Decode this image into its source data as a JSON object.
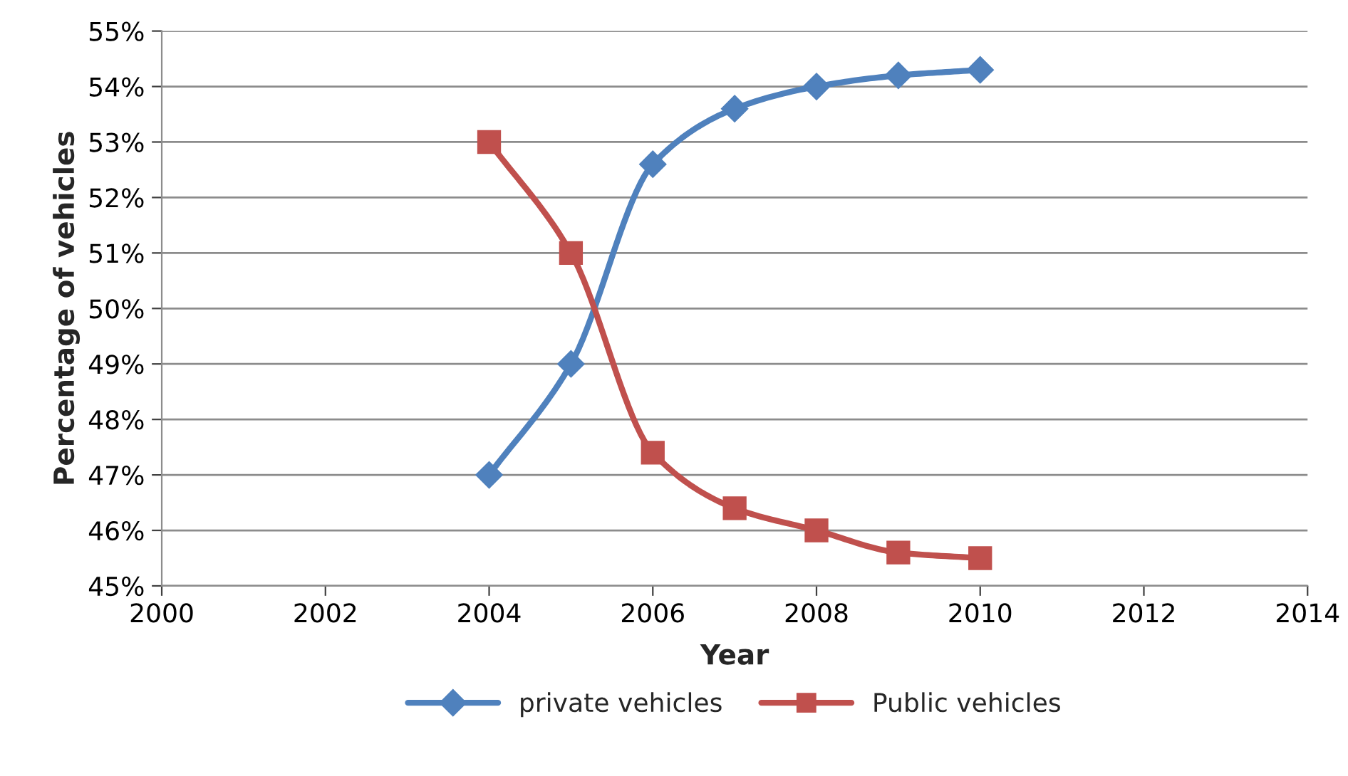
{
  "chart_data": {
    "type": "line",
    "xlabel": "Year",
    "ylabel": "Percentage of vehicles",
    "x": [
      2004,
      2005,
      2006,
      2007,
      2008,
      2009,
      2010
    ],
    "series": [
      {
        "name": "private vehicles",
        "color": "#4f81bd",
        "marker": "diamond",
        "values": [
          47,
          49,
          52.6,
          53.6,
          54.0,
          54.2,
          54.3
        ]
      },
      {
        "name": "Public vehicles",
        "color": "#c0504d",
        "marker": "square",
        "values": [
          53,
          51,
          47.4,
          46.4,
          46.0,
          45.6,
          45.5
        ]
      }
    ],
    "xlim": [
      2000,
      2014
    ],
    "xticks": [
      2000,
      2002,
      2004,
      2006,
      2008,
      2010,
      2012,
      2014
    ],
    "ylim": [
      45,
      55
    ],
    "yticks": [
      {
        "value": 45,
        "label": "45%"
      },
      {
        "value": 46,
        "label": "46%"
      },
      {
        "value": 47,
        "label": "47%"
      },
      {
        "value": 48,
        "label": "48%"
      },
      {
        "value": 49,
        "label": "49%"
      },
      {
        "value": 50,
        "label": "50%"
      },
      {
        "value": 51,
        "label": "51%"
      },
      {
        "value": 52,
        "label": "52%"
      },
      {
        "value": 53,
        "label": "53%"
      },
      {
        "value": 54,
        "label": "54%"
      },
      {
        "value": 55,
        "label": "55%"
      }
    ],
    "grid": "y",
    "legend": "bottom",
    "line_style": "solid"
  }
}
